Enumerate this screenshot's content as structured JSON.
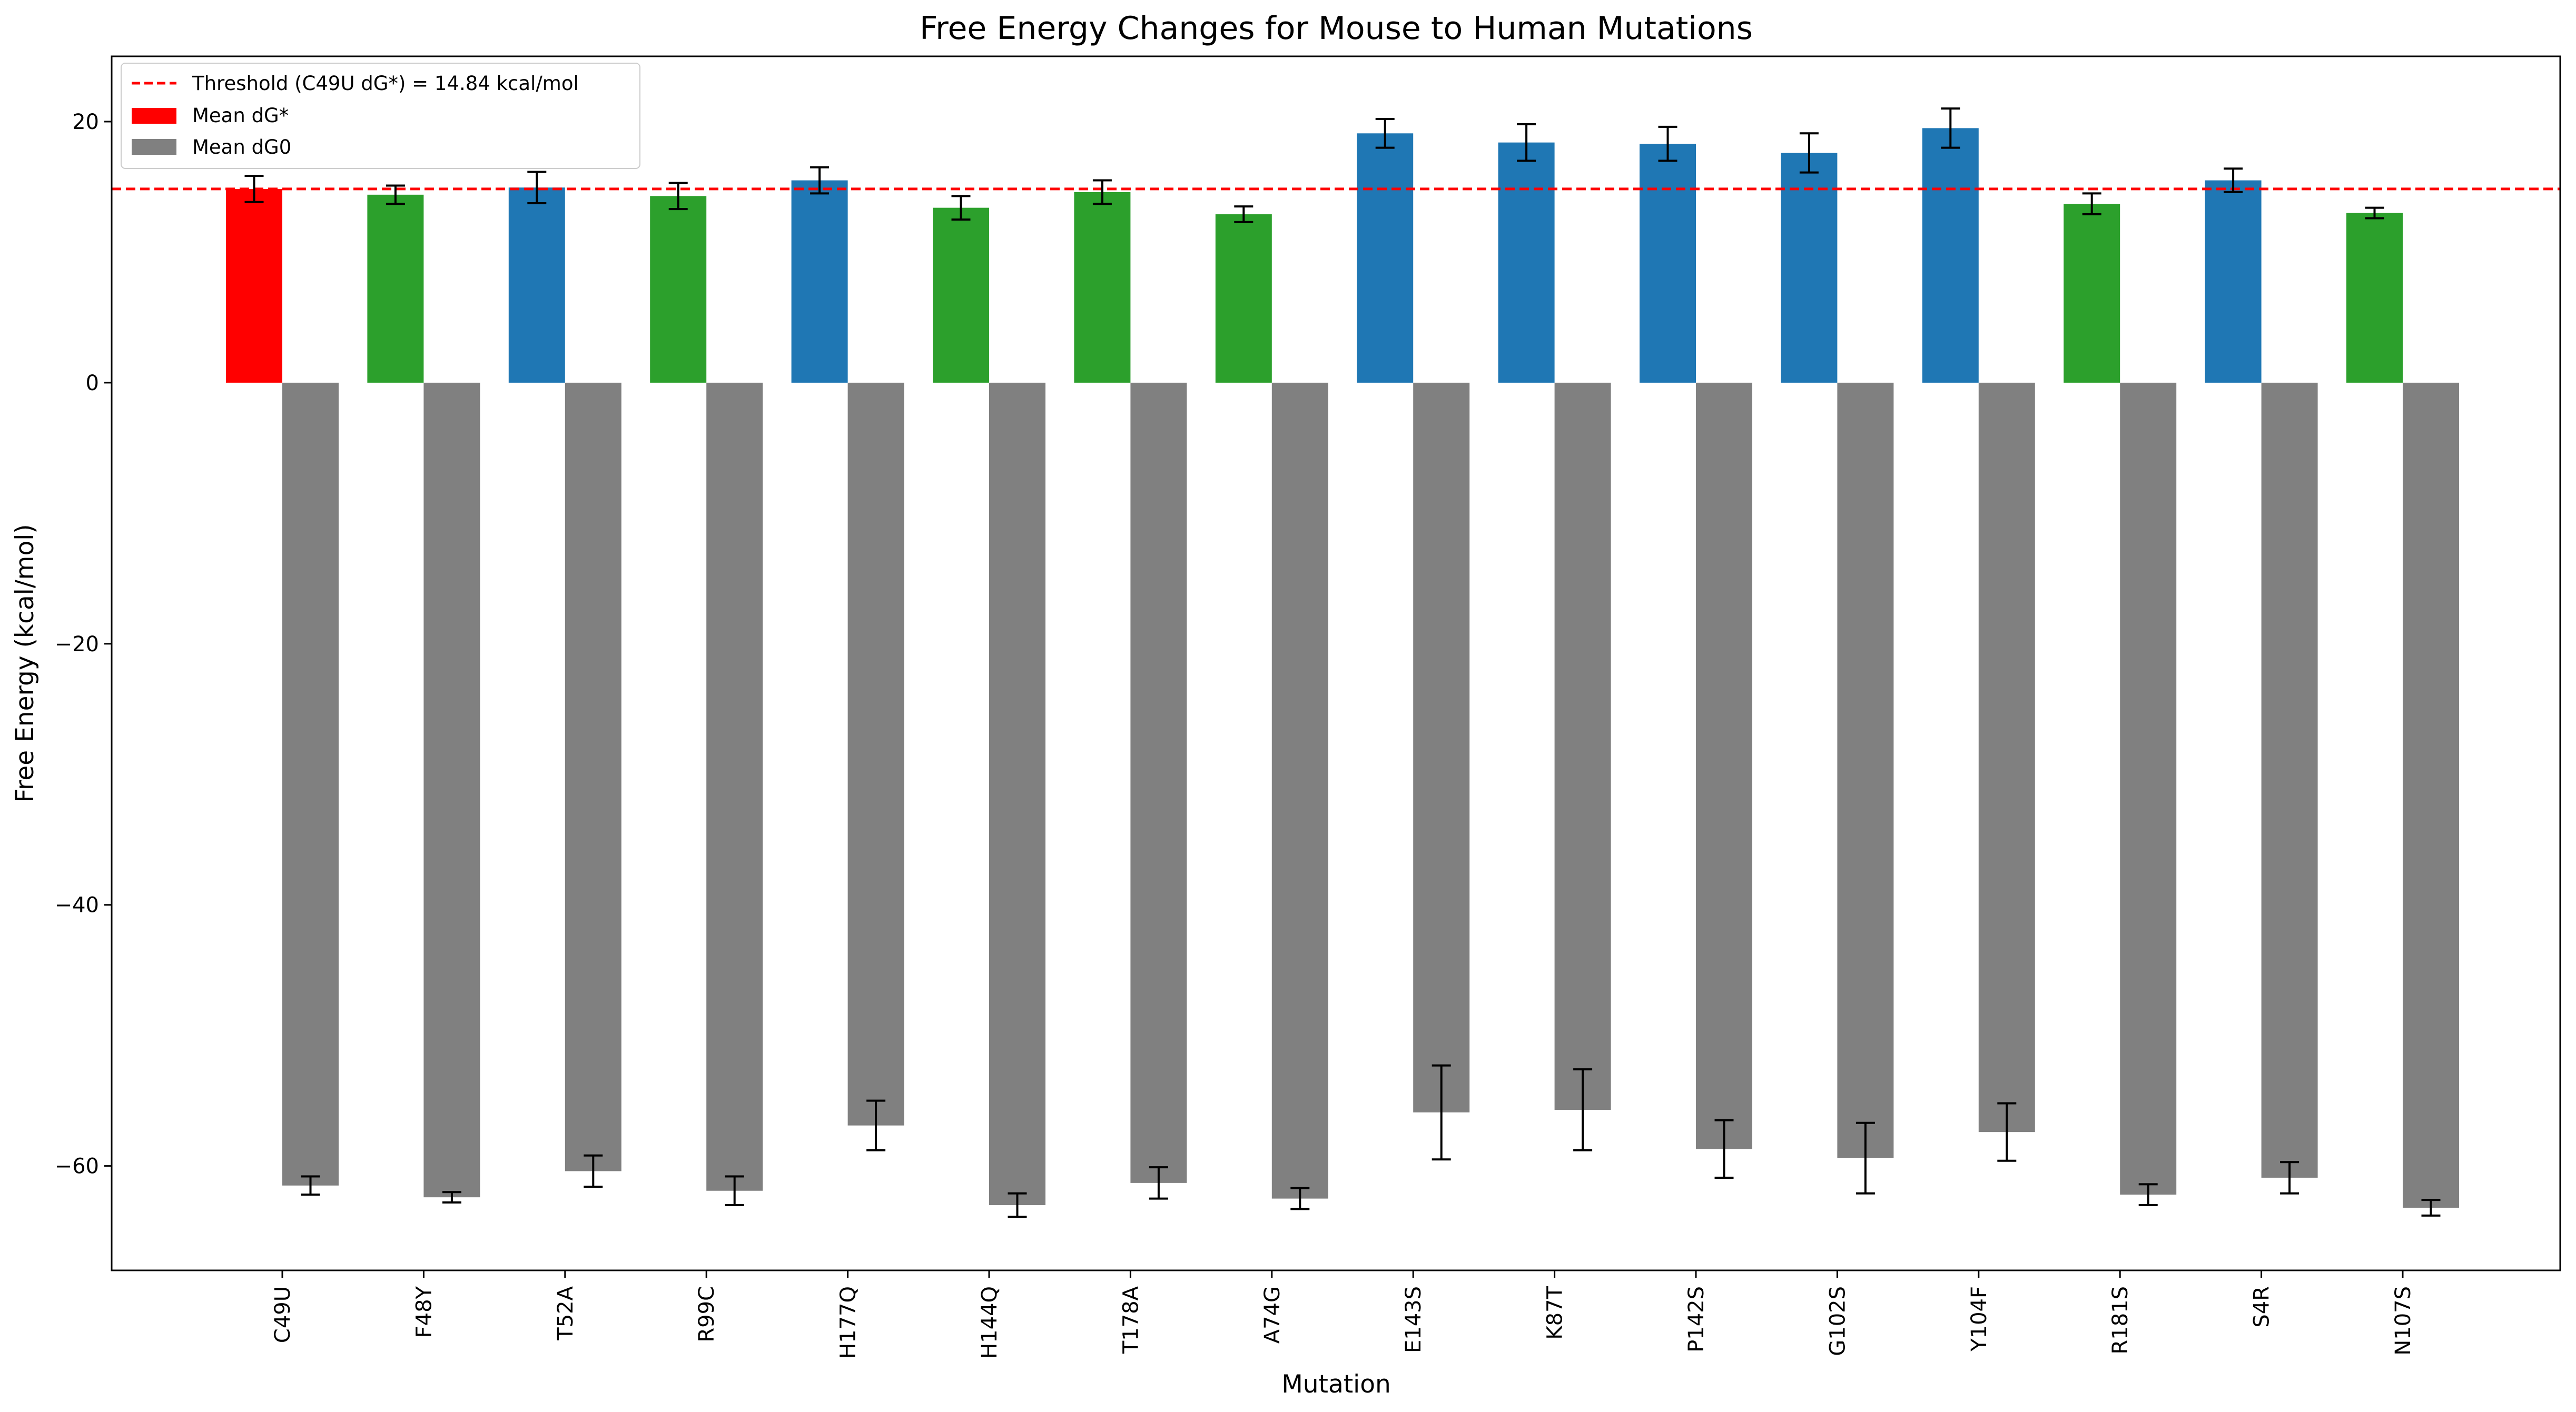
{
  "chart_data": {
    "type": "bar",
    "title": "Free Energy Changes for Mouse to Human Mutations",
    "xlabel": "Mutation",
    "ylabel": "Free Energy (kcal/mol)",
    "ylim": [
      -68,
      25
    ],
    "yticks": [
      20,
      0,
      -20,
      -40,
      -60
    ],
    "ytick_labels": [
      "20",
      "0",
      "−20",
      "−40",
      "−60"
    ],
    "grid": false,
    "legend_position": "top-left",
    "categories": [
      "C49U",
      "F48Y",
      "T52A",
      "R99C",
      "H177Q",
      "H144Q",
      "T178A",
      "A74G",
      "E143S",
      "K87T",
      "P142S",
      "G102S",
      "Y104F",
      "R181S",
      "S4R",
      "N107S"
    ],
    "threshold": {
      "value": 14.84,
      "label": "Threshold (C49U dG*) = 14.84 kcal/mol",
      "color": "#ff0000",
      "style": "dashed"
    },
    "series": [
      {
        "name": "Mean dG*",
        "legend_color": "#ff0000",
        "values": [
          14.84,
          14.4,
          14.95,
          14.3,
          15.5,
          13.4,
          14.6,
          12.9,
          19.1,
          18.4,
          18.3,
          17.6,
          19.5,
          13.7,
          15.5,
          13.0
        ],
        "errors": [
          1.0,
          0.7,
          1.2,
          1.0,
          1.0,
          0.9,
          0.9,
          0.6,
          1.1,
          1.4,
          1.3,
          1.5,
          1.5,
          0.8,
          0.9,
          0.4
        ],
        "colors": [
          "#ff0000",
          "#2ca02c",
          "#1f77b4",
          "#2ca02c",
          "#1f77b4",
          "#2ca02c",
          "#2ca02c",
          "#2ca02c",
          "#1f77b4",
          "#1f77b4",
          "#1f77b4",
          "#1f77b4",
          "#1f77b4",
          "#2ca02c",
          "#1f77b4",
          "#2ca02c"
        ]
      },
      {
        "name": "Mean dG0",
        "legend_color": "#808080",
        "color": "#808080",
        "values": [
          -61.5,
          -62.4,
          -60.4,
          -61.9,
          -56.9,
          -63.0,
          -61.3,
          -62.5,
          -55.9,
          -55.7,
          -58.7,
          -59.4,
          -57.4,
          -62.2,
          -60.9,
          -63.2
        ],
        "errors": [
          0.7,
          0.4,
          1.2,
          1.1,
          1.9,
          0.9,
          1.2,
          0.8,
          3.6,
          3.1,
          2.2,
          2.7,
          2.2,
          0.8,
          1.2,
          0.6
        ]
      }
    ]
  }
}
